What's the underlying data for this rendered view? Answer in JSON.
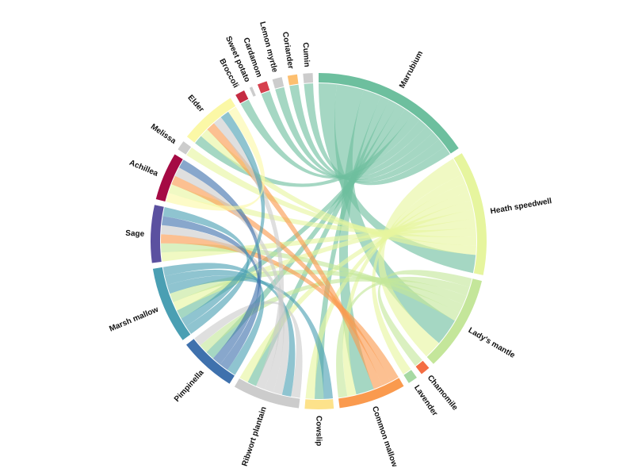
{
  "chart_data": {
    "type": "chord",
    "title": "",
    "groups": [
      {
        "name": "Marrubium",
        "color": "#6dbf9e"
      },
      {
        "name": "Heath speedwell",
        "color": "#e6f59e"
      },
      {
        "name": "Lady's mantle",
        "color": "#c4e69a"
      },
      {
        "name": "Chamomile",
        "color": "#f46d43"
      },
      {
        "name": "Lavender",
        "color": "#a6d9a3"
      },
      {
        "name": "Common mallow",
        "color": "#fa9a4e"
      },
      {
        "name": "Cowslip",
        "color": "#fde28b"
      },
      {
        "name": "Ribwort plantain",
        "color": "#cccccc"
      },
      {
        "name": "Pimpinella",
        "color": "#3f71ad"
      },
      {
        "name": "Marsh mallow",
        "color": "#4a9fb3"
      },
      {
        "name": "Sage",
        "color": "#5b51a0"
      },
      {
        "name": "Achillea",
        "color": "#a50a44"
      },
      {
        "name": "Melissa",
        "color": "#cccccc"
      },
      {
        "name": "Elder",
        "color": "#fbf8a6"
      },
      {
        "name": "Broccoli",
        "color": "#c52c43"
      },
      {
        "name": "Sweet potato",
        "color": "#cccccc"
      },
      {
        "name": "Cardamom",
        "color": "#d6404e"
      },
      {
        "name": "Lemon myrtle",
        "color": "#cccccc"
      },
      {
        "name": "Coriander",
        "color": "#fdbf6f"
      },
      {
        "name": "Cumin",
        "color": "#cccccc"
      }
    ],
    "matrix": [
      [
        0,
        2,
        3,
        0,
        0,
        2,
        1,
        1,
        1,
        1,
        0,
        0,
        0,
        1,
        1,
        0,
        1,
        1,
        1,
        1
      ],
      [
        2,
        0,
        2,
        0,
        1,
        1,
        1,
        1,
        0,
        1,
        1,
        1,
        1,
        1,
        0,
        0,
        0,
        0,
        0,
        0
      ],
      [
        3,
        2,
        0,
        1,
        0,
        1,
        0,
        0,
        1,
        1,
        1,
        0,
        0,
        0,
        0,
        0,
        0,
        0,
        0,
        0
      ],
      [
        0,
        0,
        1,
        0,
        0,
        0,
        0,
        0,
        0,
        0,
        0,
        0,
        0,
        0,
        0,
        0,
        0,
        0,
        0,
        0
      ],
      [
        0,
        1,
        0,
        0,
        0,
        0,
        0,
        0,
        0,
        0,
        0,
        0,
        0,
        0,
        0,
        0,
        0,
        0,
        0,
        0
      ],
      [
        2,
        1,
        1,
        0,
        0,
        0,
        0,
        0,
        0,
        0,
        1,
        1,
        0,
        1,
        0,
        0,
        0,
        0,
        0,
        0
      ],
      [
        1,
        1,
        0,
        0,
        0,
        0,
        0,
        0,
        0,
        1,
        0,
        0,
        0,
        0,
        0,
        0,
        0,
        0,
        0,
        0
      ],
      [
        1,
        1,
        0,
        0,
        0,
        0,
        0,
        0,
        1,
        1,
        1,
        1,
        0,
        1,
        0,
        0,
        0,
        0,
        0,
        0
      ],
      [
        1,
        0,
        1,
        0,
        0,
        0,
        0,
        1,
        0,
        1,
        1,
        1,
        0,
        0,
        0,
        0,
        0,
        0,
        0,
        0
      ],
      [
        1,
        1,
        1,
        0,
        0,
        0,
        1,
        1,
        1,
        0,
        1,
        0,
        0,
        1,
        0,
        0,
        0,
        0,
        0,
        0
      ],
      [
        0,
        1,
        1,
        0,
        0,
        1,
        0,
        1,
        1,
        1,
        0,
        0,
        0,
        0,
        0,
        0,
        0,
        0,
        0,
        0
      ],
      [
        0,
        1,
        0,
        0,
        0,
        1,
        0,
        1,
        1,
        0,
        0,
        0,
        0,
        1,
        0,
        0,
        0,
        0,
        0,
        0
      ],
      [
        0,
        1,
        0,
        0,
        0,
        0,
        0,
        0,
        0,
        0,
        0,
        0,
        0,
        0,
        0,
        0,
        0,
        0,
        0,
        0
      ],
      [
        1,
        1,
        0,
        0,
        0,
        1,
        0,
        1,
        0,
        1,
        0,
        1,
        0,
        0,
        0,
        0,
        0,
        0,
        0,
        0
      ],
      [
        1,
        0,
        0,
        0,
        0,
        0,
        0,
        0,
        0,
        0,
        0,
        0,
        0,
        0,
        0,
        0,
        0,
        0,
        0,
        0
      ],
      [
        0,
        0,
        0,
        0,
        0,
        0,
        0,
        0,
        0,
        0,
        0,
        0,
        0,
        0,
        0,
        0,
        0,
        0,
        0,
        0
      ],
      [
        1,
        0,
        0,
        0,
        0,
        0,
        0,
        0,
        0,
        0,
        0,
        0,
        0,
        0,
        0,
        0,
        0,
        0,
        0,
        0
      ],
      [
        1,
        0,
        0,
        0,
        0,
        0,
        0,
        0,
        0,
        0,
        0,
        0,
        0,
        0,
        0,
        0,
        0,
        0,
        0,
        0
      ],
      [
        1,
        0,
        0,
        0,
        0,
        0,
        0,
        0,
        0,
        0,
        0,
        0,
        0,
        0,
        0,
        0,
        0,
        0,
        0,
        0
      ],
      [
        1,
        0,
        0,
        0,
        0,
        0,
        0,
        0,
        0,
        0,
        0,
        0,
        0,
        0,
        0,
        0,
        0,
        0,
        0,
        0
      ]
    ]
  }
}
